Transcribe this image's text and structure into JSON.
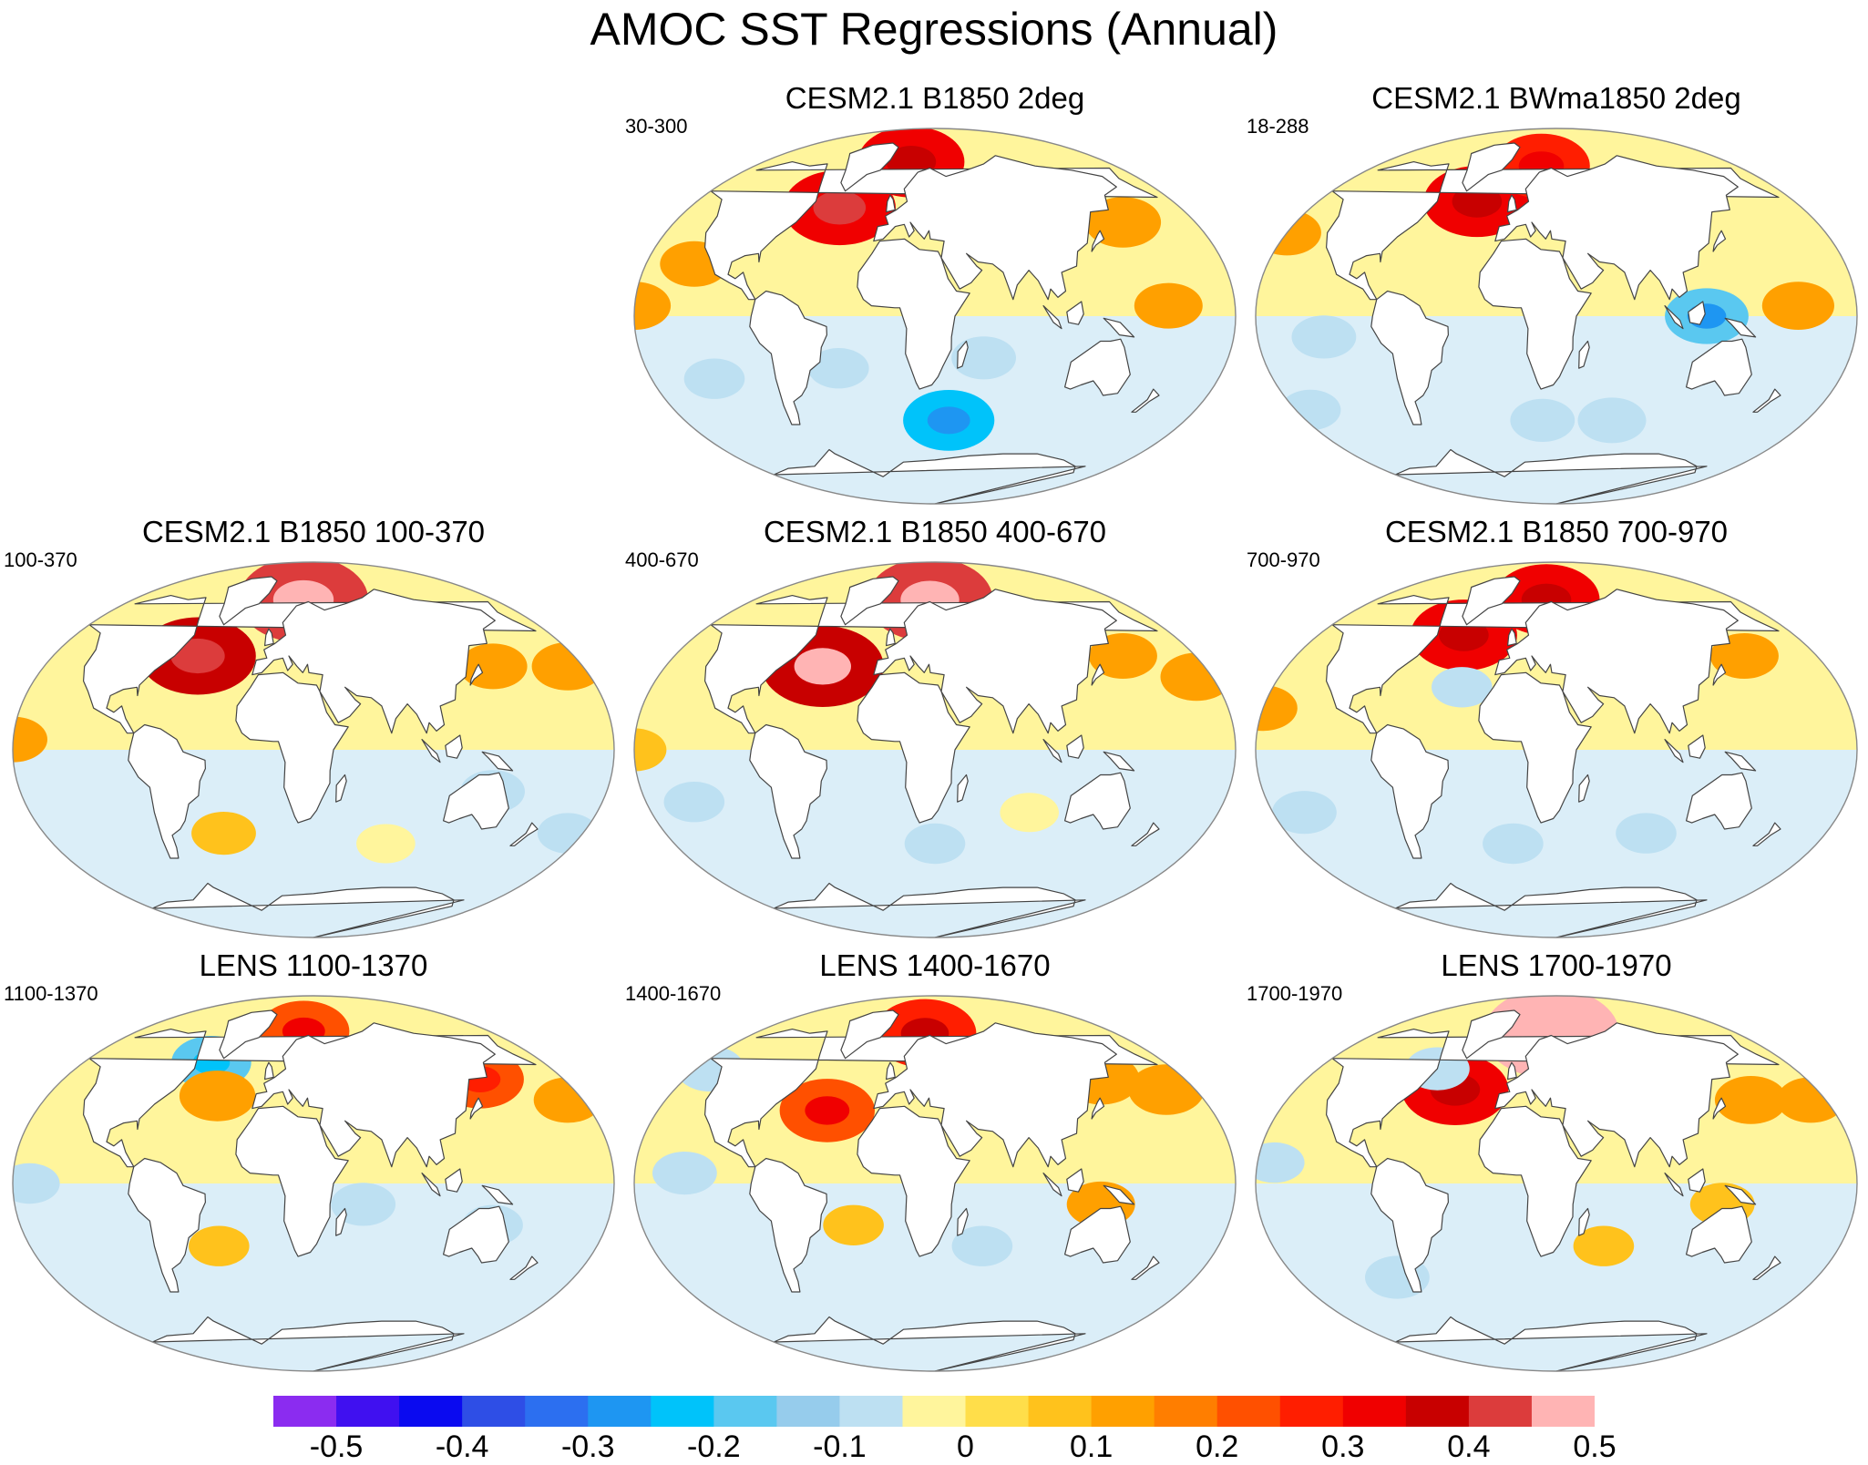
{
  "title": "AMOC SST Regressions (Annual)",
  "colors": {
    "land": "#ffffff",
    "coastline": "#444444",
    "frame": "#888888",
    "zero_pos": "#fff59c",
    "zero_neg": "#bde0f2"
  },
  "panels": [
    {
      "id": "b1850-2deg",
      "title": "CESM2.1 B1850 2deg",
      "years": "30-300",
      "features": [
        {
          "lon": -40,
          "lat": 52,
          "v": 0.33
        },
        {
          "lon": 5,
          "lat": 74,
          "v": 0.3
        },
        {
          "lon": -150,
          "lat": 5,
          "v": 0.12
        },
        {
          "lon": -120,
          "lat": 25,
          "v": 0.1
        },
        {
          "lon": 160,
          "lat": 45,
          "v": 0.14
        },
        {
          "lon": 170,
          "lat": 5,
          "v": 0.1
        },
        {
          "lon": 60,
          "lat": -20,
          "v": -0.08
        },
        {
          "lon": 40,
          "lat": -50,
          "v": -0.22
        },
        {
          "lon": -30,
          "lat": -25,
          "v": -0.06
        },
        {
          "lon": -110,
          "lat": -30,
          "v": -0.06
        }
      ]
    },
    {
      "id": "bwma1850-2deg",
      "title": "CESM2.1 BWma1850 2deg",
      "years": "18-288",
      "features": [
        {
          "lon": -30,
          "lat": 55,
          "v": 0.3
        },
        {
          "lon": 15,
          "lat": 72,
          "v": 0.25
        },
        {
          "lon": 120,
          "lat": 0,
          "v": -0.18
        },
        {
          "lon": -150,
          "lat": 40,
          "v": 0.1
        },
        {
          "lon": 175,
          "lat": 5,
          "v": 0.12
        },
        {
          "lon": -110,
          "lat": -10,
          "v": -0.08
        },
        {
          "lon": 20,
          "lat": -50,
          "v": -0.08
        },
        {
          "lon": -140,
          "lat": -45,
          "v": -0.06
        },
        {
          "lon": 70,
          "lat": -50,
          "v": -0.1
        }
      ]
    },
    {
      "id": "b1850-100-370",
      "title": "CESM2.1 B1850 100-370",
      "years": "100-370",
      "features": [
        {
          "lon": -50,
          "lat": 45,
          "v": 0.35
        },
        {
          "lon": 20,
          "lat": 72,
          "v": 0.42
        },
        {
          "lon": -160,
          "lat": 40,
          "v": 0.12
        },
        {
          "lon": -150,
          "lat": 5,
          "v": 0.1
        },
        {
          "lon": 150,
          "lat": 40,
          "v": 0.1
        },
        {
          "lon": 140,
          "lat": -20,
          "v": -0.08
        },
        {
          "lon": -30,
          "lat": -40,
          "v": 0.08
        },
        {
          "lon": -160,
          "lat": -40,
          "v": -0.06
        },
        {
          "lon": 80,
          "lat": -45,
          "v": -0.05
        }
      ]
    },
    {
      "id": "b1850-400-670",
      "title": "CESM2.1 B1850 400-670",
      "years": "400-670",
      "features": [
        {
          "lon": -45,
          "lat": 40,
          "v": 0.38
        },
        {
          "lon": 25,
          "lat": 72,
          "v": 0.4
        },
        {
          "lon": -160,
          "lat": 35,
          "v": 0.12
        },
        {
          "lon": -150,
          "lat": 0,
          "v": 0.08
        },
        {
          "lon": 160,
          "lat": 45,
          "v": 0.1
        },
        {
          "lon": 30,
          "lat": -45,
          "v": -0.06
        },
        {
          "lon": -120,
          "lat": -25,
          "v": -0.06
        },
        {
          "lon": 90,
          "lat": -30,
          "v": -0.05
        }
      ]
    },
    {
      "id": "b1850-700-970",
      "title": "CESM2.1 B1850 700-970",
      "years": "700-970",
      "features": [
        {
          "lon": -40,
          "lat": 55,
          "v": 0.3
        },
        {
          "lon": 20,
          "lat": 72,
          "v": 0.3
        },
        {
          "lon": -30,
          "lat": 30,
          "v": -0.06
        },
        {
          "lon": -150,
          "lat": 20,
          "v": 0.1
        },
        {
          "lon": 160,
          "lat": 45,
          "v": 0.1
        },
        {
          "lon": -130,
          "lat": -30,
          "v": -0.08
        },
        {
          "lon": 0,
          "lat": -45,
          "v": -0.06
        },
        {
          "lon": 90,
          "lat": -40,
          "v": -0.06
        }
      ]
    },
    {
      "id": "lens-1100-1370",
      "title": "LENS 1100-1370",
      "years": "1100-1370",
      "features": [
        {
          "lon": -50,
          "lat": 58,
          "v": -0.16
        },
        {
          "lon": -35,
          "lat": 42,
          "v": 0.14
        },
        {
          "lon": 20,
          "lat": 73,
          "v": 0.22
        },
        {
          "lon": 150,
          "lat": 50,
          "v": 0.2
        },
        {
          "lon": -160,
          "lat": 40,
          "v": 0.1
        },
        {
          "lon": 60,
          "lat": -10,
          "v": -0.08
        },
        {
          "lon": -140,
          "lat": 0,
          "v": -0.06
        },
        {
          "lon": 140,
          "lat": -20,
          "v": -0.06
        },
        {
          "lon": -30,
          "lat": -30,
          "v": 0.06
        }
      ]
    },
    {
      "id": "lens-1400-1670",
      "title": "LENS 1400-1670",
      "years": "1400-1670",
      "features": [
        {
          "lon": -40,
          "lat": 35,
          "v": 0.24
        },
        {
          "lon": 20,
          "lat": 72,
          "v": 0.28
        },
        {
          "lon": -170,
          "lat": 45,
          "v": 0.14
        },
        {
          "lon": -140,
          "lat": 55,
          "v": -0.1
        },
        {
          "lon": -120,
          "lat": 5,
          "v": -0.08
        },
        {
          "lon": 150,
          "lat": 50,
          "v": 0.14
        },
        {
          "lon": 60,
          "lat": -30,
          "v": -0.06
        },
        {
          "lon": -20,
          "lat": -20,
          "v": 0.06
        },
        {
          "lon": 130,
          "lat": -10,
          "v": 0.1
        }
      ]
    },
    {
      "id": "lens-1700-1970",
      "title": "LENS 1700-1970",
      "years": "1700-1970",
      "features": [
        {
          "lon": -40,
          "lat": 45,
          "v": 0.3
        },
        {
          "lon": 25,
          "lat": 72,
          "v": 0.45
        },
        {
          "lon": -60,
          "lat": 55,
          "v": -0.08
        },
        {
          "lon": -160,
          "lat": 40,
          "v": 0.1
        },
        {
          "lon": 160,
          "lat": 40,
          "v": 0.12
        },
        {
          "lon": -140,
          "lat": 10,
          "v": -0.06
        },
        {
          "lon": -80,
          "lat": -45,
          "v": -0.08
        },
        {
          "lon": 60,
          "lat": -30,
          "v": 0.06
        },
        {
          "lon": 130,
          "lat": -10,
          "v": 0.08
        }
      ]
    }
  ],
  "colorbar": {
    "colors": [
      "#8b2cf0",
      "#4010f0",
      "#0a0af0",
      "#2e4ee6",
      "#2c6ff0",
      "#1e96f2",
      "#00c3fa",
      "#5ac8f0",
      "#96ccec",
      "#bde0f2",
      "#fff59c",
      "#ffde4a",
      "#ffc21c",
      "#ffa000",
      "#ff7e00",
      "#ff5000",
      "#ff1e00",
      "#f00000",
      "#c80000",
      "#dc3c3c",
      "#ffb4b4"
    ],
    "labels": [
      "-0.5",
      "-0.4",
      "-0.3",
      "-0.2",
      "-0.1",
      "0",
      "0.1",
      "0.2",
      "0.3",
      "0.4",
      "0.5"
    ],
    "levels": [
      -0.5,
      -0.45,
      -0.4,
      -0.35,
      -0.3,
      -0.25,
      -0.2,
      -0.15,
      -0.1,
      -0.05,
      0,
      0.05,
      0.1,
      0.15,
      0.2,
      0.25,
      0.3,
      0.35,
      0.4,
      0.45,
      0.5
    ]
  }
}
